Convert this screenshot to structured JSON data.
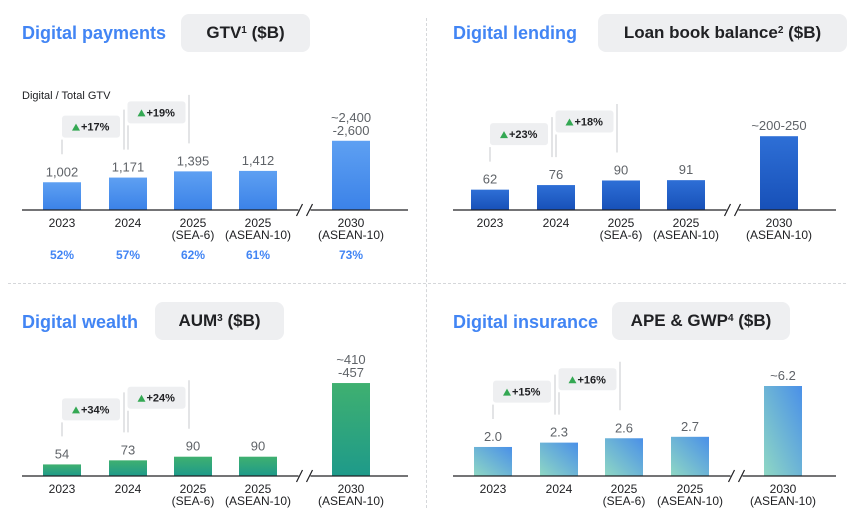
{
  "categories": [
    "2023",
    "2024",
    "2025|(SEA-6)",
    "2025|(ASEAN-10)",
    "2030|(ASEAN-10)"
  ],
  "colors": {
    "title": "#4285f4",
    "axis": "#202124",
    "value_label": "#5f6368",
    "growth_up": "#34a853",
    "pill_bg": "#eeeff1"
  },
  "payments": {
    "title": "Digital payments",
    "metric": "GTV",
    "metric_sup": "1",
    "metric_unit": "($B)",
    "subhead": "Digital / Total GTV",
    "percent_labels": [
      "52%",
      "57%",
      "62%",
      "61%",
      "73%"
    ]
  },
  "lending": {
    "title": "Digital lending",
    "metric": "Loan book balance",
    "metric_sup": "2",
    "metric_unit": "($B)"
  },
  "wealth": {
    "title": "Digital wealth",
    "metric": "AUM",
    "metric_sup": "3",
    "metric_unit": "($B)"
  },
  "insurance": {
    "title": "Digital insurance",
    "metric": "APE & GWP",
    "metric_sup": "4",
    "metric_unit": "($B)"
  },
  "chart_data": [
    {
      "type": "bar",
      "panel": "payments",
      "ylabel": "GTV ($B)",
      "categories": [
        "2023",
        "2024",
        "2025 (SEA-6)",
        "2025 (ASEAN-10)",
        "2030 (ASEAN-10)"
      ],
      "values": [
        1002,
        1171,
        1395,
        1412,
        2500
      ],
      "value_labels": [
        "1,002",
        "1,171",
        "1,395",
        "1,412",
        "~2,400|-2,600"
      ],
      "ylim": [
        0,
        2600
      ],
      "growth_labels": [
        "+17%",
        "+19%"
      ],
      "secondary_row": [
        "52%",
        "57%",
        "62%",
        "61%",
        "73%"
      ],
      "colors": [
        "#5ea0f2",
        "#3b82e8"
      ]
    },
    {
      "type": "bar",
      "panel": "lending",
      "ylabel": "Loan book balance ($B)",
      "categories": [
        "2023",
        "2024",
        "2025 (SEA-6)",
        "2025 (ASEAN-10)",
        "2030 (ASEAN-10)"
      ],
      "values": [
        62,
        76,
        90,
        91,
        225
      ],
      "value_labels": [
        "62",
        "76",
        "90",
        "91",
        "~200-250"
      ],
      "ylim": [
        0,
        250
      ],
      "growth_labels": [
        "+23%",
        "+18%"
      ],
      "colors": [
        "#2e6fd6",
        "#1750b8"
      ]
    },
    {
      "type": "bar",
      "panel": "wealth",
      "ylabel": "AUM ($B)",
      "categories": [
        "2023",
        "2024",
        "2025 (SEA-6)",
        "2025 (ASEAN-10)",
        "2030 (ASEAN-10)"
      ],
      "values": [
        54,
        73,
        90,
        90,
        433.5
      ],
      "value_labels": [
        "54",
        "73",
        "90",
        "90",
        "~410|-457"
      ],
      "ylim": [
        0,
        457
      ],
      "growth_labels": [
        "+34%",
        "+24%"
      ],
      "colors": [
        "#3fb070",
        "#1e9a8a"
      ]
    },
    {
      "type": "bar",
      "panel": "insurance",
      "ylabel": "APE & GWP ($B)",
      "categories": [
        "2023",
        "2024",
        "2025 (SEA-6)",
        "2025 (ASEAN-10)",
        "2030 (ASEAN-10)"
      ],
      "values": [
        2.0,
        2.3,
        2.6,
        2.7,
        6.2
      ],
      "value_labels": [
        "2.0",
        "2.3",
        "2.6",
        "2.7",
        "~6.2"
      ],
      "ylim": [
        0,
        6.2
      ],
      "growth_labels": [
        "+15%",
        "+16%"
      ],
      "colors": [
        "#8fd8c4",
        "#4a90e8"
      ]
    }
  ]
}
